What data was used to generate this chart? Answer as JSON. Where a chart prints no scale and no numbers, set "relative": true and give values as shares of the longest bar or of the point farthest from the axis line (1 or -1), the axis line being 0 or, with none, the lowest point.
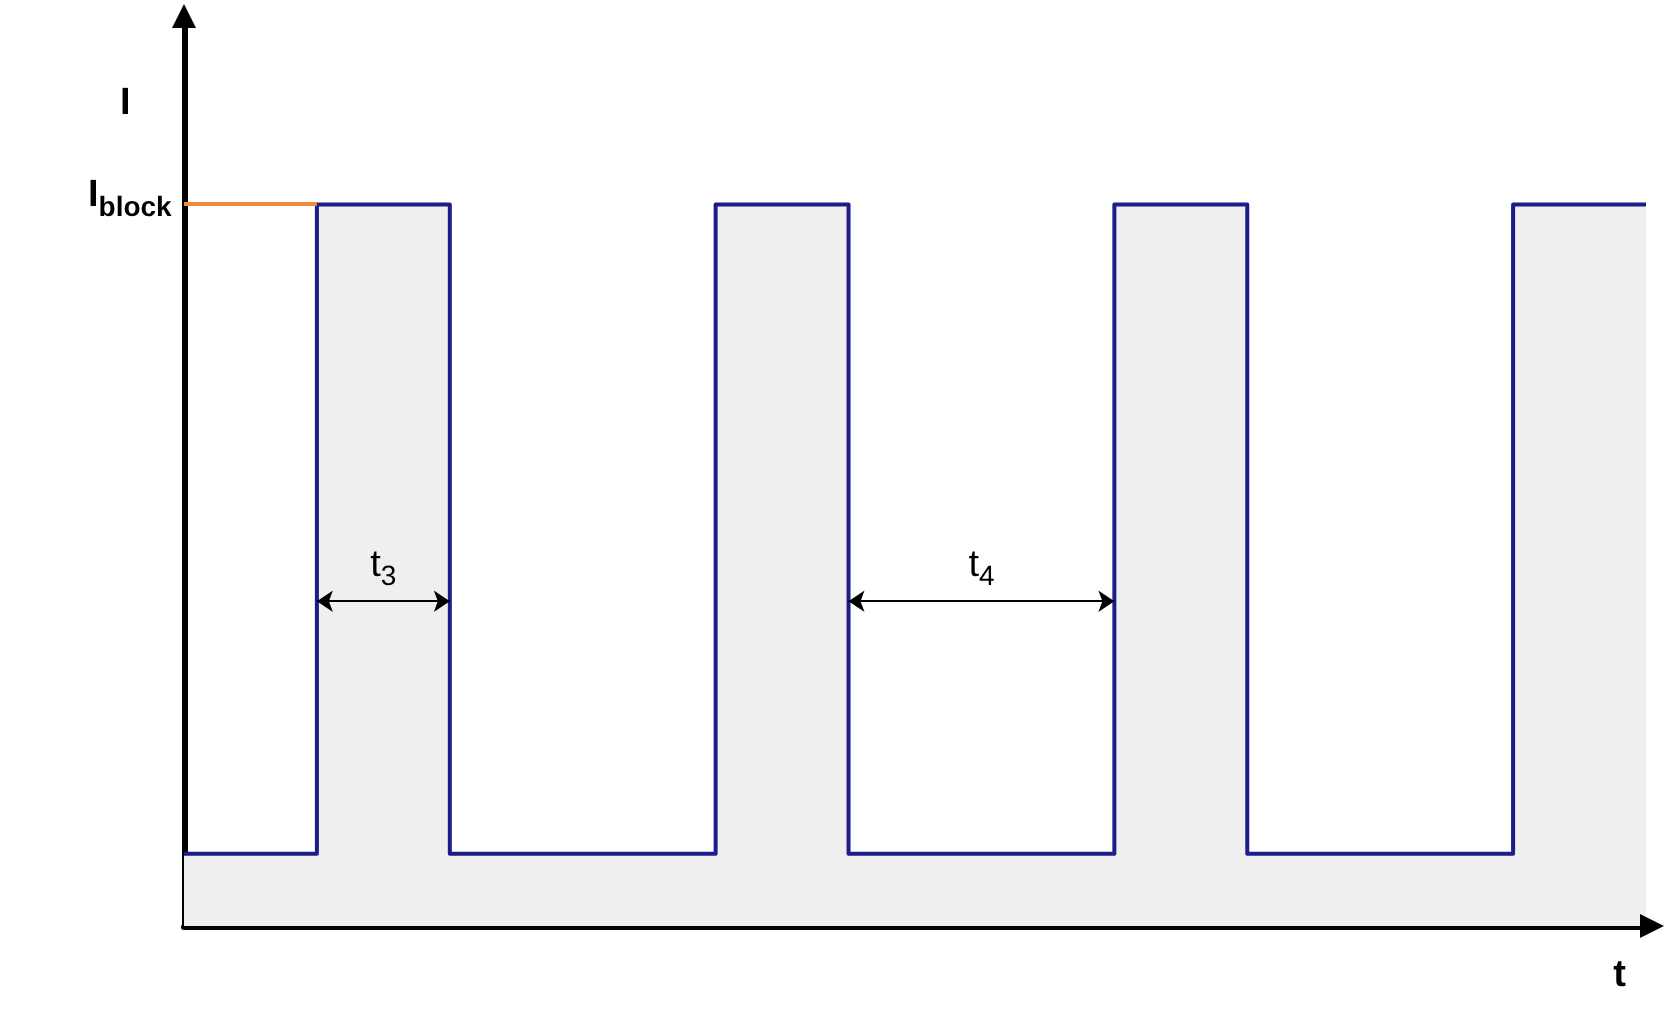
{
  "chart_data": {
    "type": "step",
    "relative": true,
    "xlabel": "t",
    "ylabel": "I",
    "categories": [
      null,
      null,
      null,
      null,
      null,
      null,
      null,
      null,
      null,
      null,
      null,
      null
    ],
    "series": [
      {
        "type": "area",
        "color": "#efefef",
        "values": [
          0.1,
          1,
          0.1,
          0.1,
          1,
          0.1,
          0.1,
          1,
          0.1,
          0.1,
          1,
          1
        ]
      },
      {
        "color": "#1c1c8a",
        "values": [
          0.1,
          1,
          0.1,
          0.1,
          1,
          0.1,
          0.1,
          1,
          0.1,
          0.1,
          1,
          1
        ]
      }
    ],
    "ref_lines": [
      {
        "axis": "y",
        "value": 1,
        "label": "I$_{block}$",
        "color": "#f08a3c"
      }
    ],
    "annotations": [
      "t$_{3}$",
      "t$_{4}$"
    ]
  }
}
